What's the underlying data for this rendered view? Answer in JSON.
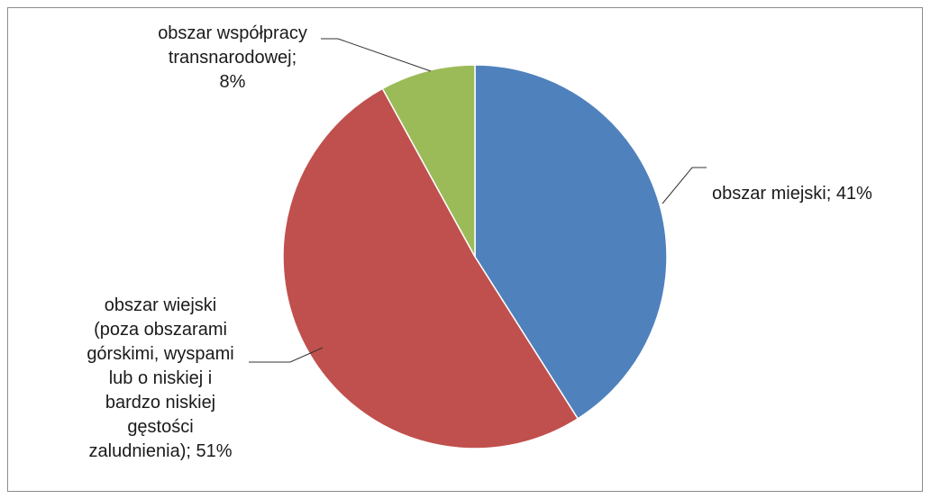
{
  "chart_data": {
    "type": "pie",
    "title": "",
    "slices": [
      {
        "value": 41,
        "color": "#4f81bd",
        "label_lines": [
          "obszar miejski; 41%"
        ]
      },
      {
        "value": 51,
        "color": "#c0504d",
        "label_lines": [
          "obszar wiejski",
          "(poza obszarami",
          "górskimi, wyspami",
          "lub o niskiej i",
          "bardzo niskiej",
          "gęstości",
          "zaludnienia); 51%"
        ]
      },
      {
        "value": 8,
        "color": "#9bbb59",
        "label_lines": [
          "obszar współpracy",
          "transnarodowej;",
          "8%"
        ]
      }
    ],
    "start_angle_deg": 0,
    "direction": "clockwise",
    "legend": "none"
  }
}
